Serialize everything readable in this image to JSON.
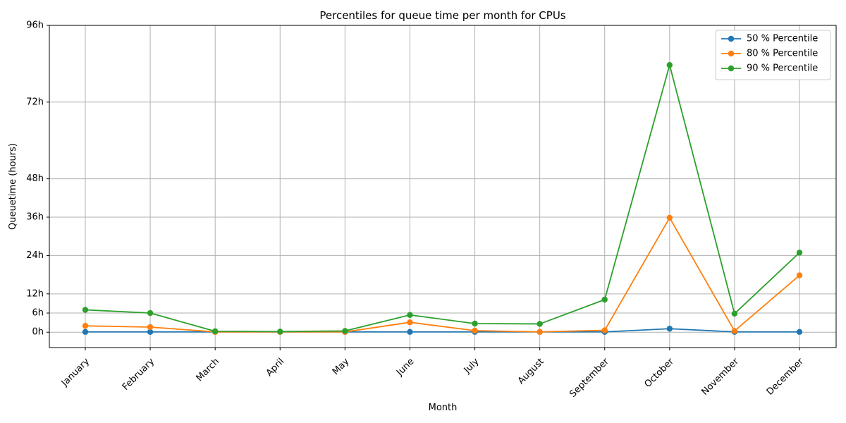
{
  "chart_data": {
    "type": "line",
    "title": "Percentiles for queue time per month for CPUs",
    "xlabel": "Month",
    "ylabel": "Queuetime (hours)",
    "categories": [
      "January",
      "February",
      "March",
      "April",
      "May",
      "June",
      "July",
      "August",
      "September",
      "October",
      "November",
      "December"
    ],
    "ylim": [
      -4.8,
      96
    ],
    "yticks": [
      {
        "value": 0,
        "label": "0h"
      },
      {
        "value": 6,
        "label": "6h"
      },
      {
        "value": 12,
        "label": "12h"
      },
      {
        "value": 24,
        "label": "24h"
      },
      {
        "value": 36,
        "label": "36h"
      },
      {
        "value": 48,
        "label": "48h"
      },
      {
        "value": 72,
        "label": "72h"
      },
      {
        "value": 96,
        "label": "96h"
      }
    ],
    "grid": true,
    "legend_position": "top-right",
    "series": [
      {
        "name": "50 % Percentile",
        "color": "#1f77b4",
        "values": [
          0.1,
          0.1,
          0.1,
          0.1,
          0.1,
          0.1,
          0.1,
          0.1,
          0.1,
          1.1,
          0.1,
          0.1
        ]
      },
      {
        "name": "80 % Percentile",
        "color": "#ff7f0e",
        "values": [
          2.0,
          1.6,
          0.1,
          0.1,
          0.1,
          3.1,
          0.5,
          0.1,
          0.6,
          35.8,
          0.4,
          17.8
        ]
      },
      {
        "name": "90 % Percentile",
        "color": "#2ca02c",
        "values": [
          7.0,
          6.0,
          0.3,
          0.2,
          0.4,
          5.4,
          2.7,
          2.6,
          10.2,
          83.6,
          5.8,
          24.9
        ]
      }
    ]
  }
}
